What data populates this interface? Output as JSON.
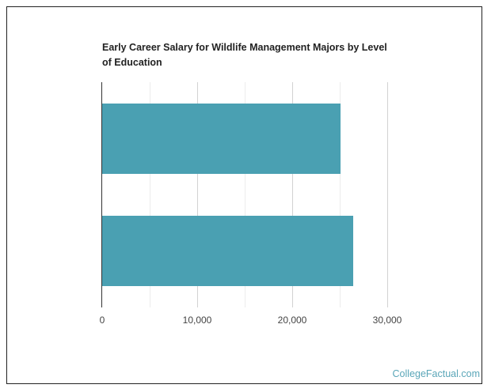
{
  "brand": "CollegeFactual.com",
  "chart_data": {
    "type": "bar",
    "orientation": "horizontal",
    "title": "Early Career Salary for Wildlife Management Majors by Level of Education",
    "categories": [
      "",
      ""
    ],
    "values": [
      25100,
      26400
    ],
    "xlabel": "",
    "ylabel": "",
    "xlim": [
      0,
      32000
    ],
    "x_ticks": [
      "0",
      "10,000",
      "20,000",
      "30,000"
    ],
    "grid": true,
    "legend": null,
    "bar_color": "#4aa0b2"
  }
}
